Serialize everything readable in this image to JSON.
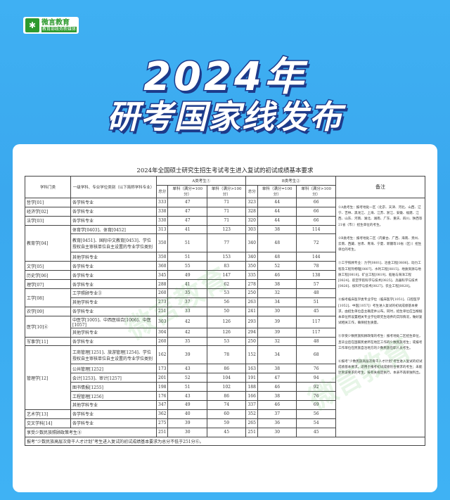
{
  "logo": {
    "name": "微言教育",
    "subtitle": "教育部政务新媒体",
    "icon": "leaf-logo-icon",
    "color": "#2e9a2e"
  },
  "title": {
    "line1": "2024年",
    "line2": "研考国家线发布"
  },
  "table": {
    "caption": "2024年全国硕士研究生招生考试考生进入复试的初试成绩基本要求",
    "headers": {
      "category": "学科门类",
      "subject": "一级学科、专业学位类别（以下简称学科专业）",
      "a_group": "A类考生①",
      "b_group": "B类考生②",
      "total": "总分",
      "single100": "单科（满分=100分）",
      "single_gt100": "单科（满分>100分）",
      "remarks": "备注"
    },
    "groups": [
      {
        "category": "哲学[01]",
        "rows": [
          {
            "subject": "各学科专业",
            "a": [
              "333",
              "47",
              "71"
            ],
            "b": [
              "323",
              "44",
              "66"
            ]
          }
        ]
      },
      {
        "category": "经济学[02]",
        "rows": [
          {
            "subject": "各学科专业",
            "a": [
              "338",
              "47",
              "71"
            ],
            "b": [
              "328",
              "44",
              "66"
            ]
          }
        ]
      },
      {
        "category": "法学[03]",
        "rows": [
          {
            "subject": "各学科专业",
            "a": [
              "330",
              "47",
              "71"
            ],
            "b": [
              "320",
              "44",
              "66"
            ]
          }
        ]
      },
      {
        "category": "教育学[04]",
        "rows": [
          {
            "subject": "体育学[0403]、体育[0452]",
            "a": [
              "313",
              "41",
              "123"
            ],
            "b": [
              "303",
              "38",
              "114"
            ]
          },
          {
            "subject": "教育[0451]、国际中文教育[0453]、学位授权自主审核单位自主设置的专业学位类别",
            "a": [
              "350",
              "51",
              "77"
            ],
            "b": [
              "340",
              "48",
              "72"
            ],
            "tall": true
          },
          {
            "subject": "其他学科专业",
            "a": [
              "350",
              "51",
              "153"
            ],
            "b": [
              "340",
              "48",
              "144"
            ]
          }
        ]
      },
      {
        "category": "文学[05]",
        "rows": [
          {
            "subject": "各学科专业",
            "a": [
              "360",
              "55",
              "83"
            ],
            "b": [
              "350",
              "52",
              "78"
            ]
          }
        ]
      },
      {
        "category": "历史学[06]",
        "rows": [
          {
            "subject": "各学科专业",
            "a": [
              "345",
              "49",
              "147"
            ],
            "b": [
              "335",
              "46",
              "138"
            ]
          }
        ]
      },
      {
        "category": "理学[07]",
        "rows": [
          {
            "subject": "各学科专业",
            "a": [
              "288",
              "41",
              "62"
            ],
            "b": [
              "278",
              "38",
              "57"
            ]
          }
        ]
      },
      {
        "category": "工学[08]",
        "rows": [
          {
            "subject": "工学照顾专业③",
            "a": [
              "260",
              "35",
              "53"
            ],
            "b": [
              "250",
              "32",
              "48"
            ]
          },
          {
            "subject": "其他学科专业",
            "a": [
              "273",
              "37",
              "56"
            ],
            "b": [
              "263",
              "34",
              "51"
            ]
          }
        ]
      },
      {
        "category": "农学[09]",
        "rows": [
          {
            "subject": "各学科专业",
            "a": [
              "251",
              "33",
              "50"
            ],
            "b": [
              "241",
              "30",
              "45"
            ]
          }
        ]
      },
      {
        "category": "医学[10]④",
        "rows": [
          {
            "subject": "中医学[1005]、中西医结合[1006]、中医[1057]",
            "a": [
              "303",
              "42",
              "126"
            ],
            "b": [
              "293",
              "39",
              "117"
            ]
          },
          {
            "subject": "其他学科专业",
            "a": [
              "304",
              "42",
              "126"
            ],
            "b": [
              "294",
              "39",
              "117"
            ]
          }
        ]
      },
      {
        "category": "军事学[11]",
        "rows": [
          {
            "subject": "各学科专业",
            "a": [
              "260",
              "35",
              "53"
            ],
            "b": [
              "250",
              "32",
              "48"
            ]
          }
        ]
      },
      {
        "category": "管理学[12]",
        "rows": [
          {
            "subject": "工商管理[1251]、旅游管理[1254]、学位授权自主审核单位自主设置的专业学位类别",
            "a": [
              "162",
              "39",
              "78"
            ],
            "b": [
              "152",
              "34",
              "68"
            ],
            "tall": true
          },
          {
            "subject": "公共管理[1252]",
            "a": [
              "173",
              "43",
              "86"
            ],
            "b": [
              "163",
              "38",
              "76"
            ]
          },
          {
            "subject": "会计[1253]、审计[1257]",
            "a": [
              "201",
              "52",
              "104"
            ],
            "b": [
              "191",
              "47",
              "94"
            ]
          },
          {
            "subject": "图书情报[1255]",
            "a": [
              "198",
              "51",
              "102"
            ],
            "b": [
              "188",
              "46",
              "92"
            ]
          },
          {
            "subject": "工程管理[1256]",
            "a": [
              "176",
              "43",
              "86"
            ],
            "b": [
              "166",
              "38",
              "76"
            ]
          },
          {
            "subject": "其他学科专业",
            "a": [
              "347",
              "49",
              "74"
            ],
            "b": [
              "337",
              "46",
              "69"
            ]
          }
        ]
      },
      {
        "category": "艺术学[13]",
        "rows": [
          {
            "subject": "各学科专业",
            "a": [
              "362",
              "40",
              "60"
            ],
            "b": [
              "352",
              "37",
              "56"
            ]
          }
        ]
      },
      {
        "category": "交叉学科[14]",
        "rows": [
          {
            "subject": "各学科专业",
            "a": [
              "275",
              "39",
              "59"
            ],
            "b": [
              "265",
              "36",
              "54"
            ]
          }
        ]
      }
    ],
    "minority_row": {
      "label": "享受少数民族照顾政策考生⑤",
      "a": [
        "251",
        "30",
        "45"
      ],
      "b": [
        "251",
        "30",
        "45"
      ]
    },
    "footnote": "报考“少数民族高层次骨干人才计划”考生进入复试的初试成绩基本要求为总分不低于251分⑥。",
    "remarks": [
      "①A类考生：报考地处一区（北京、天津、河北、山西、辽宁、吉林、黑龙江、上海、江苏、浙江、安徽、福建、江西、山东、河南、湖北、湖南、广东、重庆、四川、陕西等21省（市））招生单位的考生。",
      "②B类考生：报考地处二区（内蒙古、广西、海南、贵州、云南、西藏、甘肃、青海、宁夏、新疆等10省（区））招生单位的考生。",
      "③工学照顾专业：力学[0801]、冶金工程[0806]、动力工程及工程热物理[0807]、水利工程[0815]、地质资源与地质工程[0818]、矿业工程[0819]、船舶与海洋工程[0824]、航空宇航科学与技术[0825]、兵器科学与技术[0826]、核科学与技术[0827]、农业工程[0828]。",
      "④报考临床医学类专业学位（临床医学[1051]、口腔医学[1052]、中医[1057]）考生进入复试的初试成绩基本要求，由招生单位自主确定并公布。同时，招生单位应当根据本单位所设置相关专业学位研究生培养的实际情况，做好复试相关工作，确保招生质量。",
      "⑤享受少数民族照顾政策的考生：报考地处二区招生单位，且毕业后在国家民委所在地区工作的少数民族考生；或报考工作单位在民族自治地方的少数民族在职人员考生。",
      "⑥报考“少数民族高层次骨干人才计划”考生进入复试的初试成绩基本要求，适用于报考初试成绩符合要求的考生；未能达到该要求的考生，按有关规定执行，本表不再单独列出。"
    ]
  }
}
